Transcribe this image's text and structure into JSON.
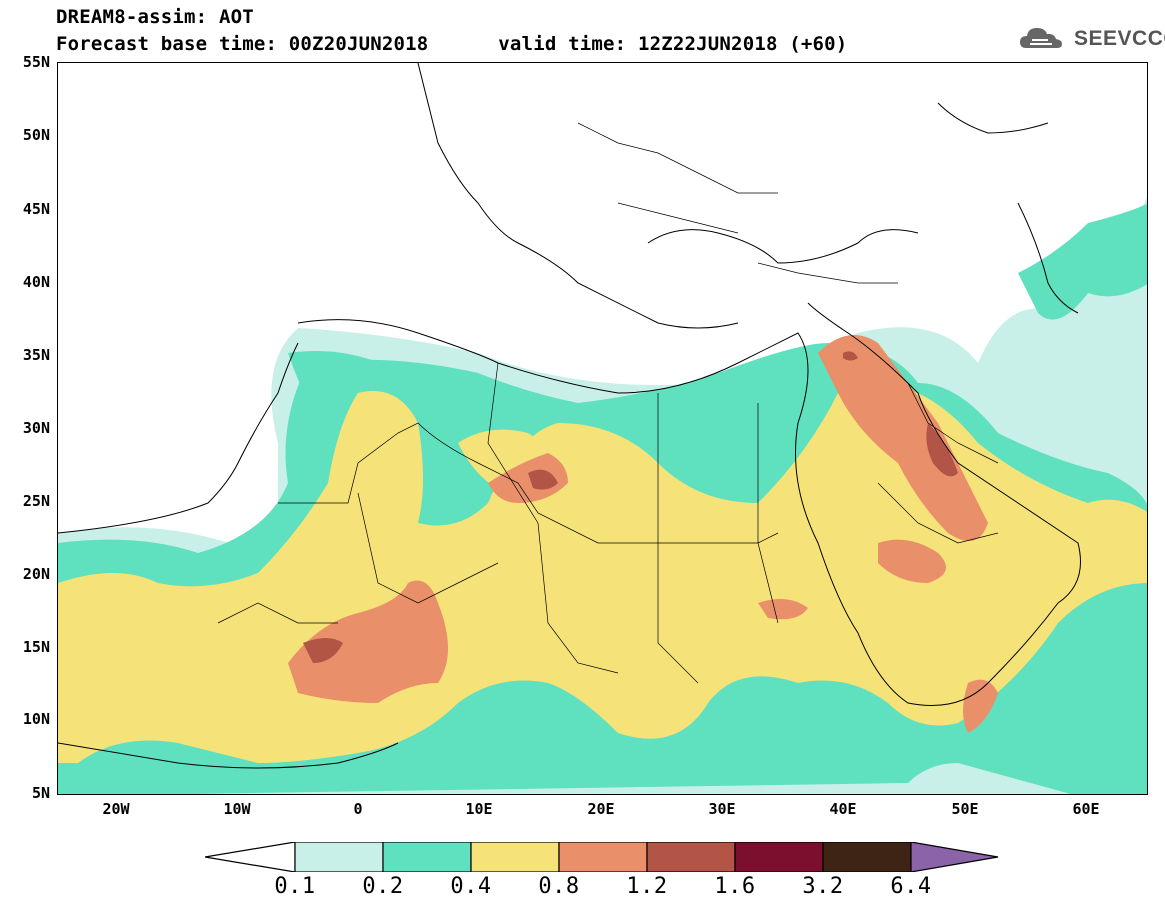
{
  "header": {
    "title_line1": "DREAM8-assim: AOT",
    "title_line2": "Forecast base time: 00Z20JUN2018      valid time: 12Z22JUN2018 (+60)"
  },
  "logo": {
    "text": "SEEVCCC",
    "icon": "cloud-icon"
  },
  "map": {
    "lat_labels": [
      "55N",
      "50N",
      "45N",
      "40N",
      "35N",
      "30N",
      "25N",
      "20N",
      "15N",
      "10N",
      "5N"
    ],
    "lon_labels": [
      "20W",
      "10W",
      "0",
      "10E",
      "20E",
      "30E",
      "40E",
      "50E",
      "60E"
    ]
  },
  "colorbar": {
    "labels": [
      "0.1",
      "0.2",
      "0.4",
      "0.8",
      "1.2",
      "1.6",
      "3.2",
      "6.4"
    ],
    "colors": [
      "#ffffff",
      "#c8efe8",
      "#5fe0bf",
      "#f5e37a",
      "#e9906a",
      "#b25446",
      "#7d0f2e",
      "#3e2414",
      "#8b63a8"
    ]
  }
}
